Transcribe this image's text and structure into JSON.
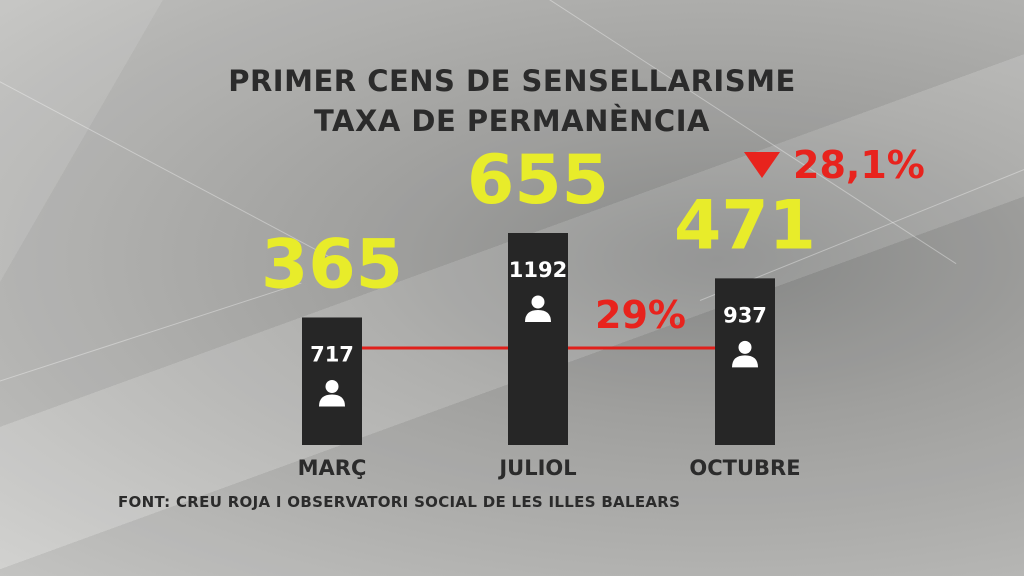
{
  "title_line1": "PRIMER CENS DE SENSELLARISME",
  "title_line2": "TAXA DE PERMANÈNCIA",
  "source": "FONT: CREU ROJA I OBSERVATORI SOCIAL DE LES ILLES BALEARS",
  "colors": {
    "bar": "#262626",
    "highlight_value": "#e8ec2a",
    "decline": "#e8231d",
    "text": "#2b2b2b"
  },
  "chart_data": {
    "type": "bar",
    "categories": [
      "MARÇ",
      "JULIOL",
      "OCTUBRE"
    ],
    "series": [
      {
        "values": [
          365,
          655,
          471
        ]
      },
      {
        "values": [
          717,
          1192,
          937
        ]
      }
    ],
    "icon": "person-icon",
    "annotations": [
      {
        "text": "29%",
        "between": [
          "JULIOL",
          "OCTUBRE"
        ]
      },
      {
        "text": "28,1%",
        "marker": "down-triangle-icon",
        "category": "OCTUBRE"
      }
    ]
  }
}
